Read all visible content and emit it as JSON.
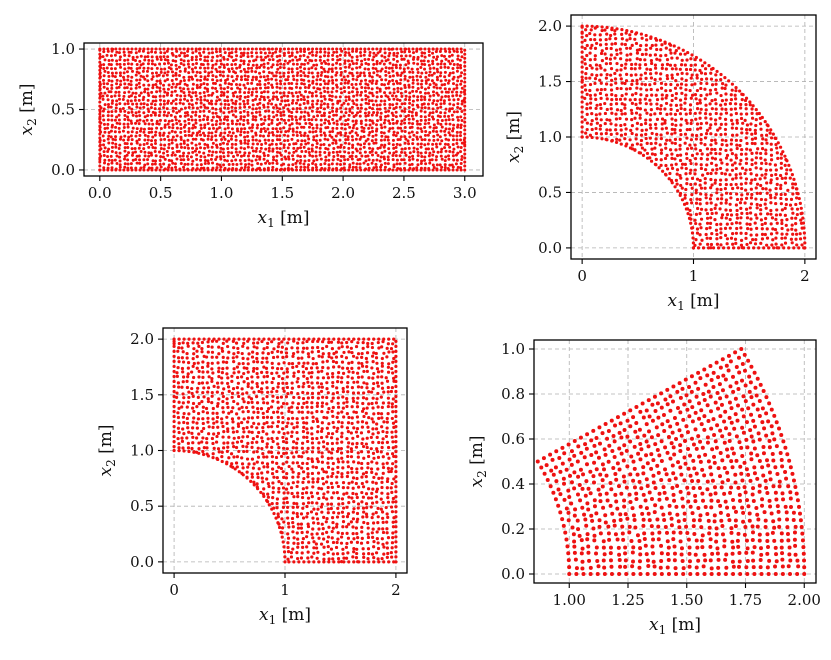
{
  "figure": {
    "point_color": "#ee1111"
  },
  "chart_data": [
    {
      "type": "scatter",
      "id": "rectangle",
      "title": "",
      "xlabel": {
        "var": "x",
        "sub": "1",
        "unit": " [m]"
      },
      "ylabel": {
        "var": "x",
        "sub": "2",
        "unit": " [m]"
      },
      "xlim": [
        -0.13,
        3.15
      ],
      "ylim": [
        -0.05,
        1.05
      ],
      "xticks": [
        0.0,
        0.5,
        1.0,
        1.5,
        2.0,
        2.5,
        3.0
      ],
      "xtick_labels": [
        "0.0",
        "0.5",
        "1.0",
        "1.5",
        "2.0",
        "2.5",
        "3.0"
      ],
      "yticks": [
        0.0,
        0.5,
        1.0
      ],
      "ytick_labels": [
        "0.0",
        "0.5",
        "1.0"
      ],
      "grid": true,
      "domain": {
        "shape": "rectangle",
        "x_range": [
          0,
          3
        ],
        "y_range": [
          0,
          1
        ]
      },
      "point_spacing": 0.033
    },
    {
      "type": "scatter",
      "id": "quarter-annulus",
      "title": "",
      "xlabel": {
        "var": "x",
        "sub": "1",
        "unit": " [m]"
      },
      "ylabel": {
        "var": "x",
        "sub": "2",
        "unit": " [m]"
      },
      "xlim": [
        -0.1,
        2.1
      ],
      "ylim": [
        -0.1,
        2.1
      ],
      "xticks": [
        0,
        1,
        2
      ],
      "xtick_labels": [
        "0",
        "1",
        "2"
      ],
      "yticks": [
        0.0,
        0.5,
        1.0,
        1.5,
        2.0
      ],
      "ytick_labels": [
        "0.0",
        "0.5",
        "1.0",
        "1.5",
        "2.0"
      ],
      "grid": true,
      "domain": {
        "shape": "quarter-annulus",
        "inner_radius": 1,
        "outer_radius": 2
      },
      "point_spacing": 0.045
    },
    {
      "type": "scatter",
      "id": "plate-with-hole",
      "title": "",
      "xlabel": {
        "var": "x",
        "sub": "1",
        "unit": " [m]"
      },
      "ylabel": {
        "var": "x",
        "sub": "2",
        "unit": " [m]"
      },
      "xlim": [
        -0.1,
        2.1
      ],
      "ylim": [
        -0.1,
        2.1
      ],
      "xticks": [
        0,
        1,
        2
      ],
      "xtick_labels": [
        "0",
        "1",
        "2"
      ],
      "yticks": [
        0.0,
        0.5,
        1.0,
        1.5,
        2.0
      ],
      "ytick_labels": [
        "0.0",
        "0.5",
        "1.0",
        "1.5",
        "2.0"
      ],
      "grid": true,
      "domain": {
        "shape": "square-minus-quarter-circle",
        "x_range": [
          0,
          2
        ],
        "y_range": [
          0,
          2
        ],
        "hole_radius": 1
      },
      "point_spacing": 0.045
    },
    {
      "type": "scatter",
      "id": "annular-sector",
      "title": "",
      "xlabel": {
        "var": "x",
        "sub": "1",
        "unit": " [m]"
      },
      "ylabel": {
        "var": "x",
        "sub": "2",
        "unit": " [m]"
      },
      "xlim": [
        0.85,
        2.05
      ],
      "ylim": [
        -0.04,
        1.04
      ],
      "xticks": [
        1.0,
        1.25,
        1.5,
        1.75,
        2.0
      ],
      "xtick_labels": [
        "1.00",
        "1.25",
        "1.50",
        "1.75",
        "2.00"
      ],
      "yticks": [
        0.0,
        0.2,
        0.4,
        0.6,
        0.8,
        1.0
      ],
      "ytick_labels": [
        "0.0",
        "0.2",
        "0.4",
        "0.6",
        "0.8",
        "1.0"
      ],
      "grid": true,
      "domain": {
        "shape": "annular-sector",
        "inner_radius": 1,
        "outer_radius": 2,
        "theta_start_deg": 0,
        "theta_end_deg": 30
      },
      "point_spacing": 0.03
    }
  ]
}
